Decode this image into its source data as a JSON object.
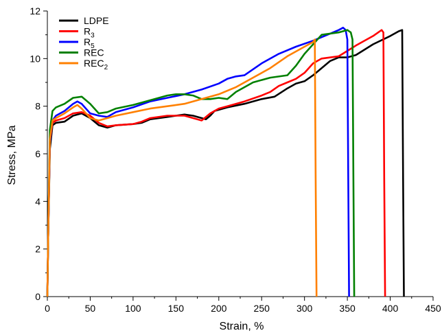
{
  "chart_data": {
    "type": "line",
    "title": "",
    "xlabel": "Strain, %",
    "ylabel": "Stress,  MPa",
    "xlim": [
      0,
      450
    ],
    "ylim": [
      0,
      12
    ],
    "xticks": [
      0,
      50,
      100,
      150,
      200,
      250,
      300,
      350,
      400,
      450
    ],
    "yticks": [
      0,
      2,
      4,
      6,
      8,
      10,
      12
    ],
    "grid": false,
    "legend_position": "top-left",
    "series": [
      {
        "name": "LDPE",
        "base": "LDPE",
        "sub": "",
        "color": "#000000",
        "points": [
          [
            0,
            0
          ],
          [
            1,
            2.5
          ],
          [
            3,
            6.2
          ],
          [
            6,
            7.2
          ],
          [
            10,
            7.3
          ],
          [
            20,
            7.35
          ],
          [
            30,
            7.6
          ],
          [
            40,
            7.7
          ],
          [
            50,
            7.5
          ],
          [
            60,
            7.2
          ],
          [
            70,
            7.1
          ],
          [
            80,
            7.2
          ],
          [
            100,
            7.25
          ],
          [
            110,
            7.3
          ],
          [
            120,
            7.45
          ],
          [
            140,
            7.55
          ],
          [
            160,
            7.65
          ],
          [
            170,
            7.6
          ],
          [
            180,
            7.5
          ],
          [
            185,
            7.45
          ],
          [
            190,
            7.6
          ],
          [
            195,
            7.8
          ],
          [
            210,
            7.95
          ],
          [
            230,
            8.1
          ],
          [
            250,
            8.3
          ],
          [
            265,
            8.4
          ],
          [
            280,
            8.75
          ],
          [
            290,
            8.95
          ],
          [
            300,
            9.05
          ],
          [
            310,
            9.3
          ],
          [
            320,
            9.6
          ],
          [
            330,
            9.9
          ],
          [
            340,
            10.05
          ],
          [
            350,
            10.05
          ],
          [
            360,
            10.15
          ],
          [
            380,
            10.6
          ],
          [
            400,
            10.95
          ],
          [
            410,
            11.15
          ],
          [
            414,
            11.2
          ],
          [
            415,
            5.0
          ],
          [
            416,
            0
          ]
        ]
      },
      {
        "name": "R3",
        "base": "R",
        "sub": "3",
        "color": "#ff0000",
        "points": [
          [
            0,
            0
          ],
          [
            1,
            2.5
          ],
          [
            3,
            6.5
          ],
          [
            6,
            7.3
          ],
          [
            10,
            7.4
          ],
          [
            20,
            7.5
          ],
          [
            30,
            7.7
          ],
          [
            40,
            7.75
          ],
          [
            50,
            7.6
          ],
          [
            60,
            7.3
          ],
          [
            70,
            7.15
          ],
          [
            80,
            7.2
          ],
          [
            100,
            7.25
          ],
          [
            110,
            7.35
          ],
          [
            120,
            7.5
          ],
          [
            140,
            7.6
          ],
          [
            160,
            7.6
          ],
          [
            170,
            7.5
          ],
          [
            180,
            7.4
          ],
          [
            190,
            7.7
          ],
          [
            200,
            7.9
          ],
          [
            210,
            8.0
          ],
          [
            230,
            8.2
          ],
          [
            250,
            8.45
          ],
          [
            260,
            8.6
          ],
          [
            270,
            8.85
          ],
          [
            280,
            9.0
          ],
          [
            290,
            9.15
          ],
          [
            300,
            9.4
          ],
          [
            310,
            9.8
          ],
          [
            320,
            10.0
          ],
          [
            340,
            10.1
          ],
          [
            360,
            10.55
          ],
          [
            380,
            10.95
          ],
          [
            390,
            11.2
          ],
          [
            392,
            11.1
          ],
          [
            393,
            5.0
          ],
          [
            394,
            0
          ]
        ]
      },
      {
        "name": "R5",
        "base": "R",
        "sub": "5",
        "color": "#0000ff",
        "points": [
          [
            0,
            0
          ],
          [
            1,
            2.5
          ],
          [
            3,
            6.5
          ],
          [
            6,
            7.4
          ],
          [
            10,
            7.6
          ],
          [
            20,
            7.8
          ],
          [
            30,
            8.1
          ],
          [
            35,
            8.2
          ],
          [
            40,
            8.1
          ],
          [
            50,
            7.7
          ],
          [
            60,
            7.6
          ],
          [
            70,
            7.55
          ],
          [
            80,
            7.75
          ],
          [
            100,
            7.95
          ],
          [
            120,
            8.2
          ],
          [
            140,
            8.35
          ],
          [
            160,
            8.5
          ],
          [
            180,
            8.7
          ],
          [
            200,
            8.95
          ],
          [
            210,
            9.15
          ],
          [
            220,
            9.25
          ],
          [
            230,
            9.3
          ],
          [
            250,
            9.8
          ],
          [
            270,
            10.2
          ],
          [
            290,
            10.5
          ],
          [
            310,
            10.75
          ],
          [
            330,
            11.05
          ],
          [
            340,
            11.2
          ],
          [
            345,
            11.3
          ],
          [
            348,
            11.2
          ],
          [
            350,
            10.8
          ],
          [
            351,
            5.0
          ],
          [
            352,
            0
          ]
        ]
      },
      {
        "name": "REC",
        "base": "REC",
        "sub": "",
        "color": "#008000",
        "points": [
          [
            0,
            0
          ],
          [
            1,
            2.5
          ],
          [
            3,
            7.0
          ],
          [
            6,
            7.8
          ],
          [
            10,
            7.95
          ],
          [
            20,
            8.1
          ],
          [
            30,
            8.35
          ],
          [
            40,
            8.4
          ],
          [
            50,
            8.1
          ],
          [
            60,
            7.7
          ],
          [
            70,
            7.75
          ],
          [
            80,
            7.9
          ],
          [
            100,
            8.05
          ],
          [
            120,
            8.25
          ],
          [
            140,
            8.45
          ],
          [
            150,
            8.5
          ],
          [
            160,
            8.5
          ],
          [
            170,
            8.45
          ],
          [
            180,
            8.3
          ],
          [
            190,
            8.3
          ],
          [
            200,
            8.35
          ],
          [
            210,
            8.3
          ],
          [
            220,
            8.6
          ],
          [
            240,
            9.0
          ],
          [
            260,
            9.2
          ],
          [
            280,
            9.3
          ],
          [
            290,
            9.7
          ],
          [
            300,
            10.2
          ],
          [
            310,
            10.6
          ],
          [
            320,
            11.0
          ],
          [
            340,
            11.1
          ],
          [
            350,
            11.2
          ],
          [
            354,
            11.1
          ],
          [
            356,
            10.8
          ],
          [
            357,
            5.0
          ],
          [
            358,
            0
          ]
        ]
      },
      {
        "name": "REC2",
        "base": "REC",
        "sub": "2",
        "color": "#ff8000",
        "points": [
          [
            0,
            0
          ],
          [
            1,
            2.5
          ],
          [
            3,
            6.6
          ],
          [
            6,
            7.4
          ],
          [
            10,
            7.5
          ],
          [
            20,
            7.7
          ],
          [
            30,
            7.95
          ],
          [
            35,
            8.05
          ],
          [
            40,
            7.9
          ],
          [
            50,
            7.5
          ],
          [
            60,
            7.4
          ],
          [
            70,
            7.5
          ],
          [
            80,
            7.6
          ],
          [
            100,
            7.75
          ],
          [
            120,
            7.9
          ],
          [
            140,
            8.0
          ],
          [
            160,
            8.1
          ],
          [
            180,
            8.3
          ],
          [
            200,
            8.5
          ],
          [
            220,
            8.8
          ],
          [
            240,
            9.2
          ],
          [
            260,
            9.6
          ],
          [
            280,
            10.1
          ],
          [
            300,
            10.5
          ],
          [
            310,
            10.7
          ],
          [
            312,
            10.8
          ],
          [
            313,
            5.0
          ],
          [
            314,
            0
          ]
        ]
      }
    ]
  }
}
